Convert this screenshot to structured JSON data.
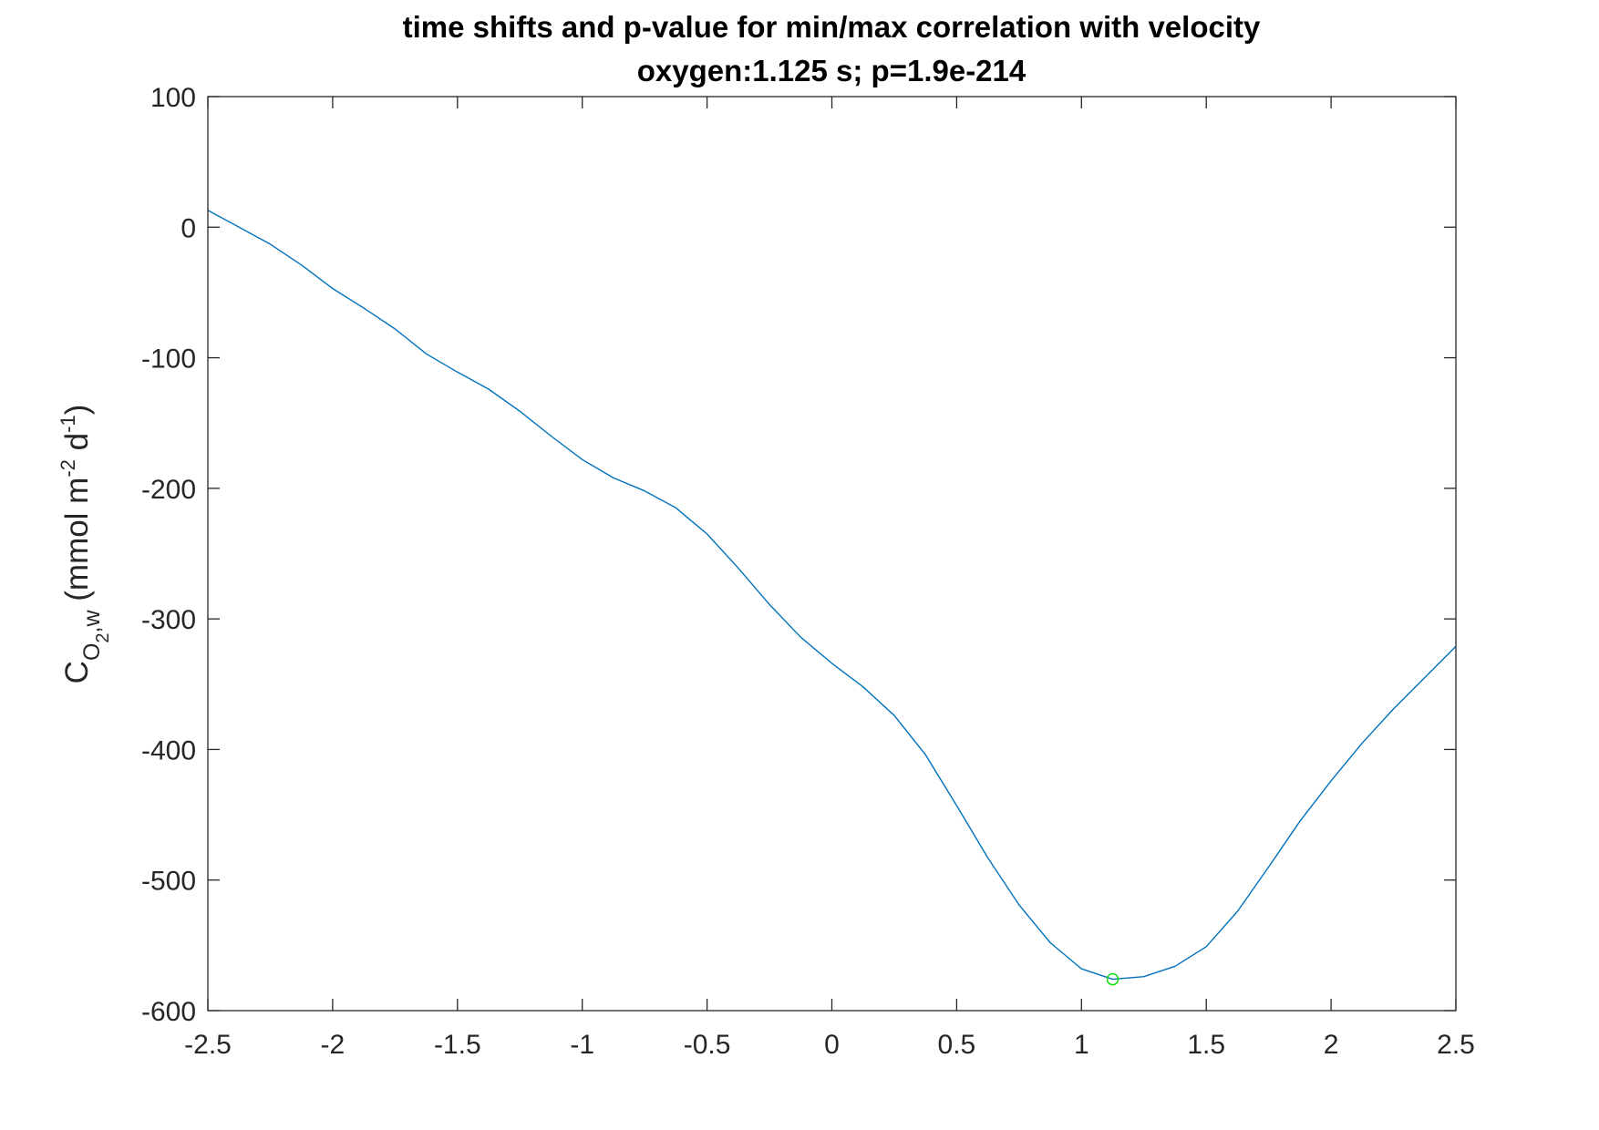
{
  "chart_data": {
    "type": "line",
    "title": "time shifts and p-value for min/max correlation with velocity",
    "subtitle": "oxygen:1.125 s; p=1.9e-214",
    "xlabel": "",
    "ylabel": {
      "base": "C",
      "sub1": "O",
      "sub2": "2",
      "sub3": ",w",
      "paren_open": " (mmol m",
      "exp1": "-2",
      "mid": " d",
      "exp2": "-1",
      "paren_close": ")"
    },
    "xlim": [
      -2.5,
      2.5
    ],
    "ylim": [
      -600,
      100
    ],
    "xticks": [
      -2.5,
      -2,
      -1.5,
      -1,
      -0.5,
      0,
      0.5,
      1,
      1.5,
      2,
      2.5
    ],
    "xtick_labels": [
      "-2.5",
      "-2",
      "-1.5",
      "-1",
      "-0.5",
      "0",
      "0.5",
      "1",
      "1.5",
      "2",
      "2.5"
    ],
    "yticks": [
      100,
      0,
      -100,
      -200,
      -300,
      -400,
      -500,
      -600
    ],
    "ytick_labels": [
      "100",
      "0",
      "-100",
      "-200",
      "-300",
      "-400",
      "-500",
      "-600"
    ],
    "grid": false,
    "series": [
      {
        "color": "#0072BD",
        "x": [
          -2.5,
          -2.375,
          -2.25,
          -2.125,
          -2,
          -1.875,
          -1.75,
          -1.625,
          -1.5,
          -1.375,
          -1.25,
          -1.125,
          -1,
          -0.875,
          -0.75,
          -0.625,
          -0.5,
          -0.375,
          -0.25,
          -0.125,
          0,
          0.125,
          0.25,
          0.375,
          0.5,
          0.625,
          0.75,
          0.875,
          1,
          1.125,
          1.25,
          1.375,
          1.5,
          1.625,
          1.75,
          1.875,
          2,
          2.125,
          2.25,
          2.375,
          2.5
        ],
        "y": [
          13,
          0,
          -13,
          -29,
          -47,
          -62,
          -78,
          -97,
          -111,
          -124,
          -141,
          -160,
          -178,
          -192,
          -202,
          -215,
          -235,
          -261,
          -289,
          -314,
          -334,
          -352,
          -374,
          -404,
          -443,
          -483,
          -519,
          -548,
          -568,
          -576,
          -574,
          -566,
          -551,
          -524,
          -490,
          -455,
          -424,
          -395,
          -369,
          -345,
          -321
        ]
      }
    ],
    "marker": {
      "x": 1.125,
      "y": -576,
      "shape": "circle",
      "color": "#00E000"
    }
  }
}
